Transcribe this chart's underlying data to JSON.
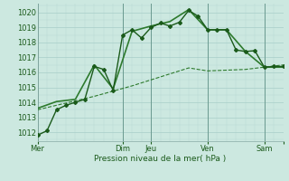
{
  "background_color": "#cce8e0",
  "grid_color_major": "#a8cec8",
  "grid_color_minor": "#b8d8d2",
  "ylim": [
    1011.4,
    1020.6
  ],
  "xlim": [
    0,
    130
  ],
  "xlabel": "Pression niveau de la mer( hPa )",
  "yticks": [
    1012,
    1013,
    1014,
    1015,
    1016,
    1017,
    1018,
    1019,
    1020
  ],
  "day_positions": [
    0,
    45,
    60,
    90,
    120,
    130
  ],
  "day_labels": [
    "Mer",
    "Dim",
    "Jeu",
    "Ven",
    "Sam",
    ""
  ],
  "dark_green": "#1a5a1a",
  "med_green": "#2d7a2d",
  "line1_x": [
    0,
    5,
    10,
    15,
    20,
    25,
    30,
    35,
    40,
    45,
    50,
    55,
    60,
    65,
    70,
    75,
    80,
    85,
    90,
    95,
    100,
    105,
    110,
    115,
    120,
    125,
    130
  ],
  "line1_y": [
    1011.8,
    1012.1,
    1013.5,
    1013.8,
    1014.0,
    1014.2,
    1016.4,
    1016.2,
    1014.8,
    1018.5,
    1018.85,
    1018.3,
    1019.0,
    1019.3,
    1019.1,
    1019.35,
    1020.15,
    1019.75,
    1018.85,
    1018.85,
    1018.85,
    1017.5,
    1017.4,
    1017.45,
    1016.35,
    1016.4,
    1016.4
  ],
  "line2_x": [
    0,
    10,
    20,
    30,
    40,
    50,
    60,
    70,
    80,
    90,
    100,
    110,
    120,
    130
  ],
  "line2_y": [
    1013.6,
    1014.05,
    1014.2,
    1016.5,
    1014.9,
    1018.75,
    1019.1,
    1019.4,
    1020.2,
    1018.85,
    1018.85,
    1017.4,
    1016.35,
    1016.35
  ],
  "line3_x": [
    0,
    10,
    20,
    30,
    40,
    50,
    60,
    70,
    80,
    90,
    100,
    110,
    120,
    130
  ],
  "line3_y": [
    1013.5,
    1013.8,
    1014.1,
    1014.4,
    1014.75,
    1015.1,
    1015.5,
    1015.9,
    1016.3,
    1016.1,
    1016.15,
    1016.2,
    1016.35,
    1016.5
  ],
  "lw1": 1.0,
  "lw2": 1.2,
  "lw3": 0.8
}
